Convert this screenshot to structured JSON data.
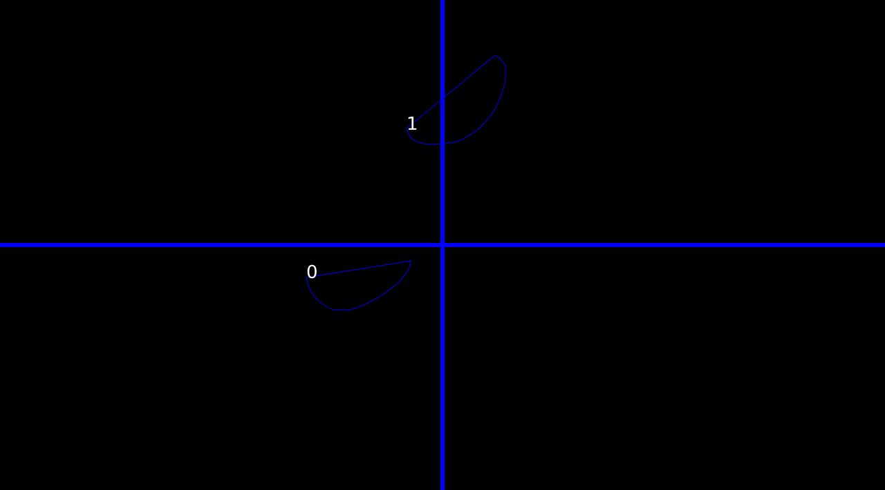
{
  "colors": {
    "background": "#000000",
    "axis": "#0000ff",
    "outline": "#0000cc",
    "label": "#ffffff"
  },
  "shapes": [
    {
      "label": "0"
    },
    {
      "label": "1"
    }
  ]
}
